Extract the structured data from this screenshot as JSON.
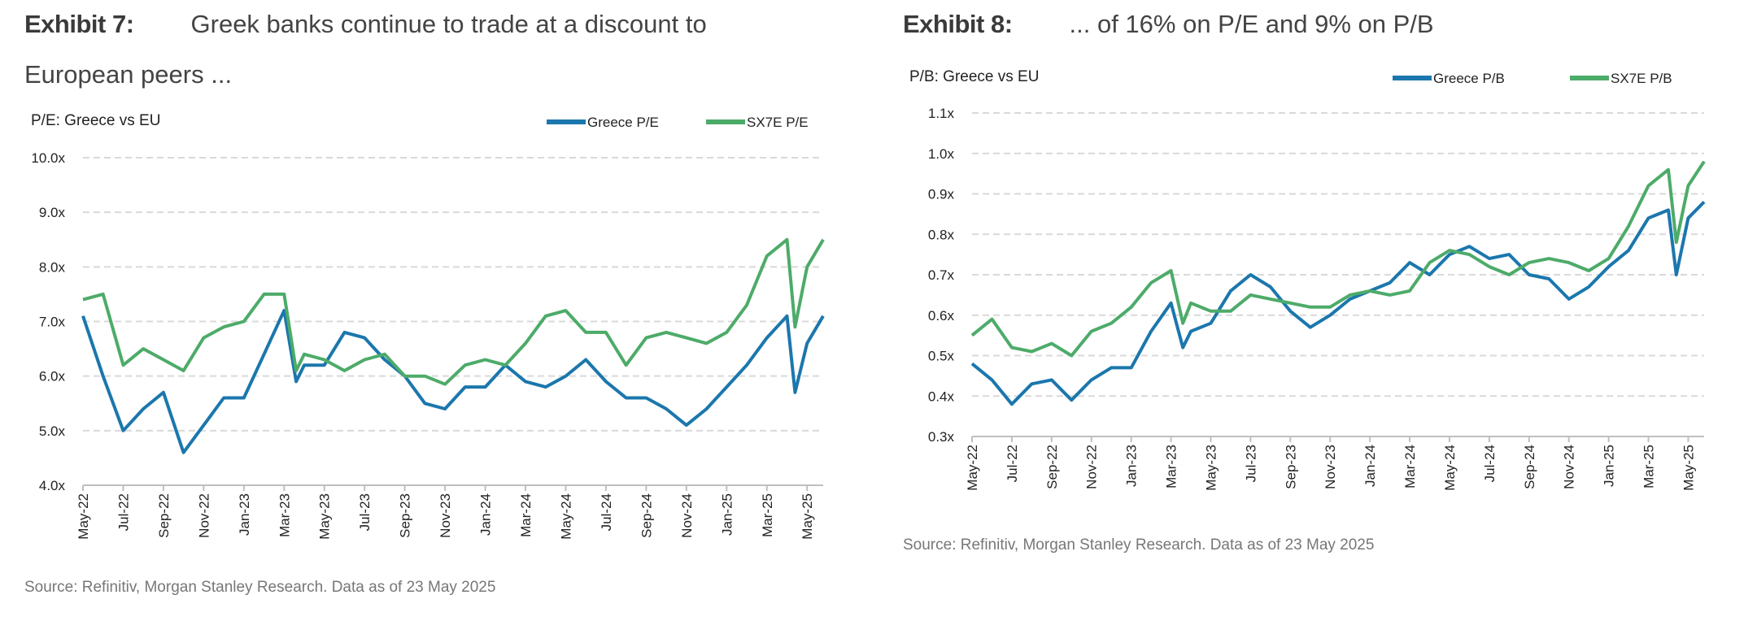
{
  "exhibit7": {
    "label": "Exhibit 7:",
    "title_line1": "Greek banks continue to trade at a discount to",
    "title_line2": "European peers ...",
    "source": "Source: Refinitiv, Morgan Stanley Research. Data as of 23 May 2025"
  },
  "exhibit8": {
    "label": "Exhibit 8:",
    "title": "... of 16% on P/E and 9% on P/B",
    "source": "Source: Refinitiv, Morgan Stanley Research. Data as of 23 May 2025"
  },
  "colors": {
    "greece": "#1b77ad",
    "sx7e": "#4dab69",
    "grid": "#d9d9d9",
    "axis": "#bfbfbf"
  },
  "chart_data": [
    {
      "type": "line",
      "title": "P/E: Greece vs EU",
      "xlabel": "",
      "ylabel": "",
      "x_ticks": [
        "May-22",
        "Jul-22",
        "Sep-22",
        "Nov-22",
        "Jan-23",
        "Mar-23",
        "May-23",
        "Jul-23",
        "Sep-23",
        "Nov-23",
        "Jan-24",
        "Mar-24",
        "May-24",
        "Jul-24",
        "Sep-24",
        "Nov-24",
        "Jan-25",
        "Mar-25",
        "May-25"
      ],
      "x_unit": "months since May-22",
      "xlim": [
        0,
        36.8
      ],
      "y_ticks": [
        "4.0x",
        "5.0x",
        "6.0x",
        "7.0x",
        "8.0x",
        "9.0x",
        "10.0x"
      ],
      "ylim": [
        4,
        10
      ],
      "grid": true,
      "legend_position": "top-right",
      "x": [
        0,
        1,
        2,
        3,
        4,
        5,
        6,
        7,
        8,
        9,
        10,
        10.6,
        11,
        12,
        13,
        14,
        15,
        16,
        17,
        18,
        19,
        20,
        21,
        22,
        23,
        24,
        25,
        26,
        27,
        28,
        29,
        30,
        31,
        32,
        33,
        34,
        35,
        35.4,
        36,
        36.8
      ],
      "series": [
        {
          "name": "Greece P/E",
          "color_key": "greece",
          "values": [
            7.1,
            6.0,
            5.0,
            5.4,
            5.7,
            4.6,
            5.1,
            5.6,
            5.6,
            6.4,
            7.2,
            5.9,
            6.2,
            6.2,
            6.8,
            6.7,
            6.3,
            6.0,
            5.5,
            5.4,
            5.8,
            5.8,
            6.2,
            5.9,
            5.8,
            6.0,
            6.3,
            5.9,
            5.6,
            5.6,
            5.4,
            5.1,
            5.4,
            5.8,
            6.2,
            6.7,
            7.1,
            5.7,
            6.6,
            7.1
          ]
        },
        {
          "name": "SX7E P/E",
          "color_key": "sx7e",
          "values": [
            7.4,
            7.5,
            6.2,
            6.5,
            6.3,
            6.1,
            6.7,
            6.9,
            7.0,
            7.5,
            7.5,
            6.1,
            6.4,
            6.3,
            6.1,
            6.3,
            6.4,
            6.0,
            6.0,
            5.85,
            6.2,
            6.3,
            6.2,
            6.6,
            7.1,
            7.2,
            6.8,
            6.8,
            6.2,
            6.7,
            6.8,
            6.7,
            6.6,
            6.8,
            7.3,
            8.2,
            8.5,
            6.9,
            8.0,
            8.5
          ]
        }
      ]
    },
    {
      "type": "line",
      "title": "P/B: Greece vs EU",
      "xlabel": "",
      "ylabel": "",
      "x_ticks": [
        "May-22",
        "Jul-22",
        "Sep-22",
        "Nov-22",
        "Jan-23",
        "Mar-23",
        "May-23",
        "Jul-23",
        "Sep-23",
        "Nov-23",
        "Jan-24",
        "Mar-24",
        "May-24",
        "Jul-24",
        "Sep-24",
        "Nov-24",
        "Jan-25",
        "Mar-25",
        "May-25"
      ],
      "x_unit": "months since May-22",
      "xlim": [
        0,
        36.8
      ],
      "y_ticks": [
        "0.3x",
        "0.4x",
        "0.5x",
        "0.6x",
        "0.7x",
        "0.8x",
        "0.9x",
        "1.0x",
        "1.1x"
      ],
      "ylim": [
        0.3,
        1.1
      ],
      "grid": true,
      "legend_position": "top-right",
      "x": [
        0,
        1,
        2,
        3,
        4,
        5,
        6,
        7,
        8,
        9,
        10,
        10.6,
        11,
        12,
        13,
        14,
        15,
        16,
        17,
        18,
        19,
        20,
        21,
        22,
        23,
        24,
        25,
        26,
        27,
        28,
        29,
        30,
        31,
        32,
        33,
        34,
        35,
        35.4,
        36,
        36.8
      ],
      "series": [
        {
          "name": "Greece P/B",
          "color_key": "greece",
          "values": [
            0.48,
            0.44,
            0.38,
            0.43,
            0.44,
            0.39,
            0.44,
            0.47,
            0.47,
            0.56,
            0.63,
            0.52,
            0.56,
            0.58,
            0.66,
            0.7,
            0.67,
            0.61,
            0.57,
            0.6,
            0.64,
            0.66,
            0.68,
            0.73,
            0.7,
            0.75,
            0.77,
            0.74,
            0.75,
            0.7,
            0.69,
            0.64,
            0.67,
            0.72,
            0.76,
            0.84,
            0.86,
            0.7,
            0.84,
            0.88
          ]
        },
        {
          "name": "SX7E P/B",
          "color_key": "sx7e",
          "values": [
            0.55,
            0.59,
            0.52,
            0.51,
            0.53,
            0.5,
            0.56,
            0.58,
            0.62,
            0.68,
            0.71,
            0.58,
            0.63,
            0.61,
            0.61,
            0.65,
            0.64,
            0.63,
            0.62,
            0.62,
            0.65,
            0.66,
            0.65,
            0.66,
            0.73,
            0.76,
            0.75,
            0.72,
            0.7,
            0.73,
            0.74,
            0.73,
            0.71,
            0.74,
            0.82,
            0.92,
            0.96,
            0.78,
            0.92,
            0.98
          ]
        }
      ]
    }
  ]
}
